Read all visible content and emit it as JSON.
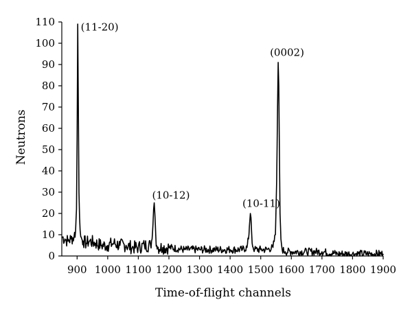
{
  "chart_data": {
    "type": "line",
    "title": "",
    "xlabel": "Time-of-flight channels",
    "ylabel": "Neutrons",
    "xlim": [
      850,
      1900
    ],
    "ylim": [
      0,
      110
    ],
    "xticks": [
      900,
      1000,
      1100,
      1200,
      1300,
      1400,
      1500,
      1600,
      1700,
      1800,
      1900
    ],
    "yticks": [
      0,
      10,
      20,
      30,
      40,
      50,
      60,
      70,
      80,
      90,
      100,
      110
    ],
    "grid": false,
    "legend": "none",
    "series": [
      {
        "color": "#000000",
        "x": [
          850,
          860,
          870,
          880,
          890,
          895,
          898,
          900,
          902,
          904,
          906,
          908,
          910,
          912,
          915,
          920,
          930,
          940,
          960,
          980,
          1000,
          1020,
          1040,
          1060,
          1080,
          1100,
          1120,
          1140,
          1145,
          1148,
          1150,
          1152,
          1154,
          1157,
          1160,
          1165,
          1180,
          1200,
          1250,
          1300,
          1350,
          1400,
          1440,
          1455,
          1460,
          1463,
          1466,
          1468,
          1470,
          1472,
          1475,
          1480,
          1500,
          1520,
          1540,
          1548,
          1552,
          1555,
          1557,
          1559,
          1561,
          1563,
          1566,
          1570,
          1580,
          1600,
          1650,
          1700,
          1750,
          1800,
          1850,
          1900
        ],
        "y": [
          9,
          8,
          7,
          8,
          9,
          12,
          22,
          55,
          109,
          70,
          30,
          18,
          12,
          9,
          8,
          7,
          6,
          7,
          6,
          5,
          5,
          6,
          5,
          5,
          4,
          4,
          5,
          5,
          8,
          15,
          22,
          25,
          20,
          10,
          5,
          4,
          4,
          4,
          3,
          3,
          3,
          3,
          3,
          4,
          8,
          14,
          20,
          18,
          12,
          6,
          4,
          3,
          3,
          3,
          4,
          10,
          35,
          70,
          91,
          80,
          50,
          20,
          8,
          3,
          2,
          2,
          2,
          2,
          1,
          1,
          1,
          1
        ]
      }
    ],
    "annotations": [
      {
        "text": "(11-20)",
        "x": 912,
        "y": 106
      },
      {
        "text": "(10-12)",
        "x": 1145,
        "y": 27
      },
      {
        "text": "(10-11)",
        "x": 1440,
        "y": 23
      },
      {
        "text": "(0002)",
        "x": 1530,
        "y": 94
      }
    ]
  }
}
